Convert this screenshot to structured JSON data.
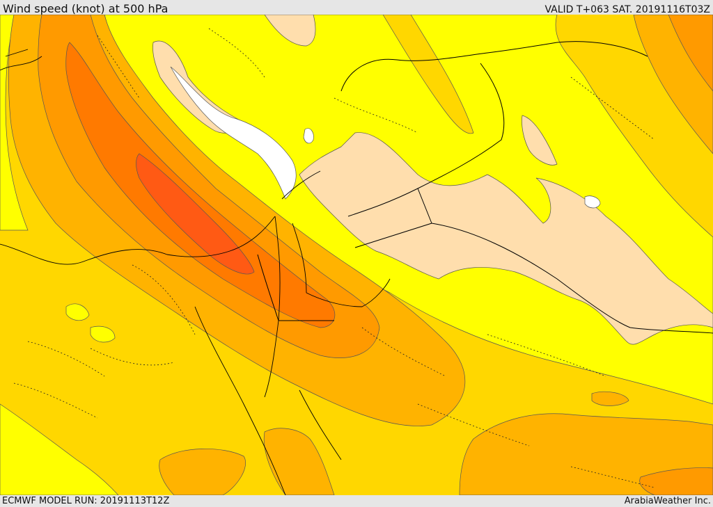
{
  "header": {
    "title": "Wind speed (knot) at 500 hPa",
    "valid": "VALID T+063 SAT. 20191116T03Z"
  },
  "footer": {
    "model_run": "ECMWF MODEL RUN: 20191113T12Z",
    "credit": "ArabiaWeather Inc."
  },
  "legend_colors": {
    "white": "#ffffff",
    "light_peach": "#ffdead",
    "yellow": "#ffff00",
    "gold": "#ffd700",
    "amber": "#ffb300",
    "orange": "#ff8c00",
    "dark_orange": "#ff7000",
    "red_orange": "#ff5a14"
  }
}
